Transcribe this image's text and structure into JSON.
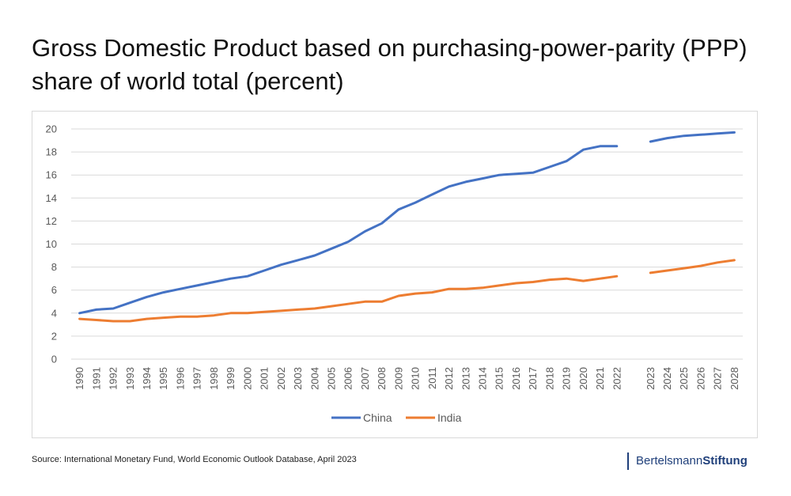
{
  "header": {
    "title": "Gross Domestic Product based on purchasing-power-parity (PPP) share of world total (percent)"
  },
  "footer": {
    "source": "Source: International Monetary Fund, World Economic Outlook Database, April 2023",
    "brand_first": "Bertelsmann",
    "brand_second": "Stiftung"
  },
  "colors": {
    "china": "#4472c4",
    "india": "#ed7d31",
    "grid": "#d9d9d9",
    "brand": "#1f3f7a"
  },
  "chart_data": {
    "type": "line",
    "title": "",
    "xlabel": "",
    "ylabel": "",
    "ylim": [
      0,
      20
    ],
    "yticks": [
      0,
      2,
      4,
      6,
      8,
      10,
      12,
      14,
      16,
      18,
      20
    ],
    "grid": true,
    "legend_position": "bottom",
    "categories": [
      "1990",
      "1991",
      "1992",
      "1993",
      "1994",
      "1995",
      "1996",
      "1997",
      "1998",
      "1999",
      "2000",
      "2001",
      "2002",
      "2003",
      "2004",
      "2005",
      "2006",
      "2007",
      "2008",
      "2009",
      "2010",
      "2011",
      "2012",
      "2013",
      "2014",
      "2015",
      "2016",
      "2017",
      "2018",
      "2019",
      "2020",
      "2021",
      "2022",
      "",
      "2023",
      "2024",
      "2025",
      "2026",
      "2027",
      "2028"
    ],
    "series": [
      {
        "name": "China",
        "color": "#4472c4",
        "values": [
          4.0,
          4.3,
          4.4,
          4.9,
          5.4,
          5.8,
          6.1,
          6.4,
          6.7,
          7.0,
          7.2,
          7.7,
          8.2,
          8.6,
          9.0,
          9.6,
          10.2,
          11.1,
          11.8,
          13.0,
          13.6,
          14.3,
          15.0,
          15.4,
          15.7,
          16.0,
          16.1,
          16.2,
          16.7,
          17.2,
          18.2,
          18.5,
          18.5,
          null,
          18.9,
          19.2,
          19.4,
          19.5,
          19.6,
          19.7
        ]
      },
      {
        "name": "India",
        "color": "#ed7d31",
        "values": [
          3.5,
          3.4,
          3.3,
          3.3,
          3.5,
          3.6,
          3.7,
          3.7,
          3.8,
          4.0,
          4.0,
          4.1,
          4.2,
          4.3,
          4.4,
          4.6,
          4.8,
          5.0,
          5.0,
          5.5,
          5.7,
          5.8,
          6.1,
          6.1,
          6.2,
          6.4,
          6.6,
          6.7,
          6.9,
          7.0,
          6.8,
          7.0,
          7.2,
          null,
          7.5,
          7.7,
          7.9,
          8.1,
          8.4,
          8.6
        ]
      }
    ]
  }
}
